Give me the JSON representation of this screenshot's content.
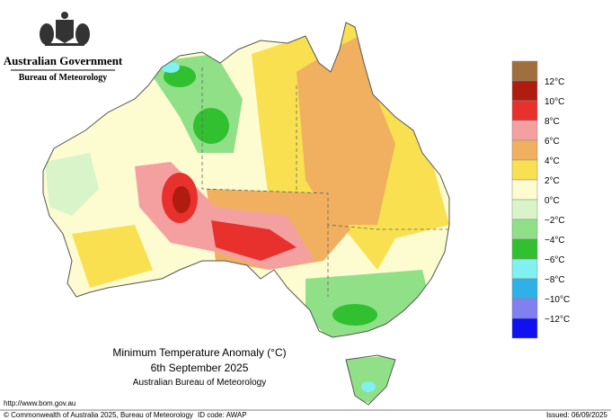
{
  "header": {
    "government": "Australian Government",
    "bureau": "Bureau of Meteorology"
  },
  "map": {
    "title": "Minimum Temperature Anomaly (°C)",
    "date": "6th September 2025",
    "source": "Australian Bureau of Meteorology"
  },
  "legend": {
    "colors": [
      "#a0703c",
      "#b01c10",
      "#e8302c",
      "#f4a0a0",
      "#f0b060",
      "#f8e050",
      "#fdfbd0",
      "#d8f4c8",
      "#90e088",
      "#30c030",
      "#80f0f0",
      "#30b0e8",
      "#8080f0",
      "#1010f0"
    ],
    "labels": [
      "12°C",
      "10°C",
      "8°C",
      "6°C",
      "4°C",
      "2°C",
      "0°C",
      "−2°C",
      "−4°C",
      "−6°C",
      "−8°C",
      "−10°C",
      "−12°C"
    ]
  },
  "footer": {
    "url": "http://www.bom.gov.au",
    "copyright": "© Commonwealth of Australia 2025, Bureau of Meteorology",
    "id_code": "ID code: AWAP",
    "issued": "Issued: 06/09/2025"
  }
}
